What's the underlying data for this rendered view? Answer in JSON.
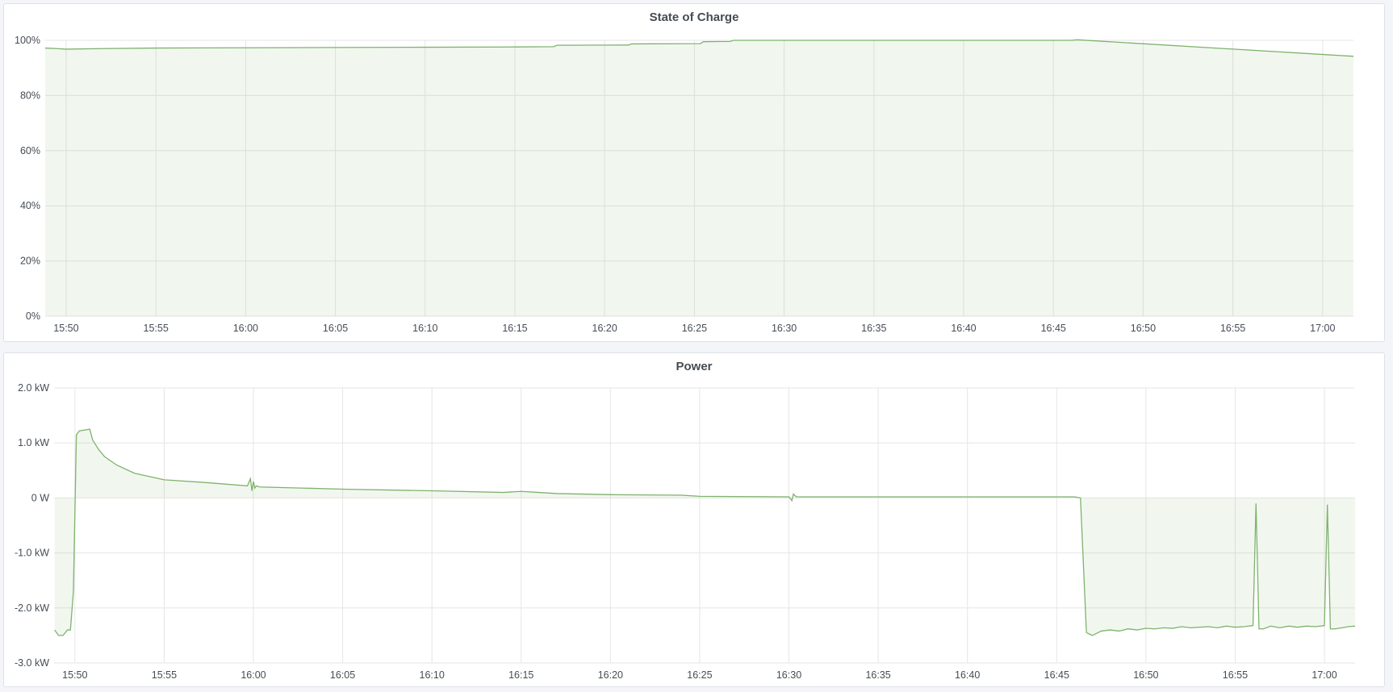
{
  "colors": {
    "line": "#7eb26d",
    "fill": "rgba(126,178,109,0.11)",
    "grid": "#e6e6e6"
  },
  "chart_data": [
    {
      "type": "area",
      "title": "State of Charge",
      "xlim": [
        "15:48:50",
        "17:01:43"
      ],
      "ylim": [
        0,
        100
      ],
      "grid": true,
      "x_ticks": [
        "15:50",
        "15:55",
        "16:00",
        "16:05",
        "16:10",
        "16:15",
        "16:20",
        "16:25",
        "16:30",
        "16:35",
        "16:40",
        "16:45",
        "16:50",
        "16:55",
        "17:00"
      ],
      "y_ticks": [
        {
          "v": 0,
          "label": "0%"
        },
        {
          "v": 20,
          "label": "20%"
        },
        {
          "v": 40,
          "label": "40%"
        },
        {
          "v": 60,
          "label": "60%"
        },
        {
          "v": 80,
          "label": "80%"
        },
        {
          "v": 100,
          "label": "100%"
        }
      ],
      "series": [
        {
          "x": [
            "15:48:50",
            "15:49:30",
            "15:50:00",
            "15:52:00",
            "15:55:00",
            "16:00:00",
            "16:05:00",
            "16:10:00",
            "16:15:00",
            "16:17:10",
            "16:17:20",
            "16:21:20",
            "16:21:30",
            "16:25:20",
            "16:25:30",
            "16:27:00",
            "16:27:10",
            "16:46:00",
            "16:46:20",
            "17:01:43"
          ],
          "y": [
            97.2,
            97.0,
            96.8,
            97.0,
            97.2,
            97.3,
            97.4,
            97.5,
            97.6,
            97.7,
            98.2,
            98.3,
            98.7,
            98.8,
            99.5,
            99.6,
            100,
            100,
            100.2,
            94.2
          ]
        }
      ]
    },
    {
      "type": "area",
      "title": "Power",
      "xlim": [
        "15:48:50",
        "17:01:43"
      ],
      "ylim": [
        -3.0,
        2.0
      ],
      "grid": true,
      "x_ticks": [
        "15:50",
        "15:55",
        "16:00",
        "16:05",
        "16:10",
        "16:15",
        "16:20",
        "16:25",
        "16:30",
        "16:35",
        "16:40",
        "16:45",
        "16:50",
        "16:55",
        "17:00"
      ],
      "y_ticks": [
        {
          "v": -3,
          "label": "-3.0 kW"
        },
        {
          "v": -2,
          "label": "-2.0 kW"
        },
        {
          "v": -1,
          "label": "-1.0 kW"
        },
        {
          "v": 0,
          "label": "0 W"
        },
        {
          "v": 1,
          "label": "1.0 kW"
        },
        {
          "v": 2,
          "label": "2.0 kW"
        }
      ],
      "series": [
        {
          "x": [
            "15:48:52",
            "15:49:05",
            "15:49:20",
            "15:49:35",
            "15:49:45",
            "15:49:55",
            "15:50:05",
            "15:50:15",
            "15:50:50",
            "15:51:00",
            "15:51:20",
            "15:51:40",
            "15:52:20",
            "15:53:20",
            "15:55:00",
            "15:57:20",
            "15:59:40",
            "15:59:50",
            "15:59:55",
            "16:00:00",
            "16:00:05",
            "16:00:10",
            "16:00:20",
            "16:05:00",
            "16:10:00",
            "16:14:00",
            "16:15:00",
            "16:16:00",
            "16:17:00",
            "16:20:00",
            "16:24:00",
            "16:25:00",
            "16:30:00",
            "16:30:10",
            "16:30:15",
            "16:30:25",
            "16:35:00",
            "16:40:00",
            "16:46:00",
            "16:46:20",
            "16:46:40",
            "16:47:00",
            "16:47:30",
            "16:48:00",
            "16:48:30",
            "16:49:00",
            "16:49:30",
            "16:50:00",
            "16:50:30",
            "16:51:00",
            "16:51:30",
            "16:52:00",
            "16:52:30",
            "16:53:00",
            "16:53:30",
            "16:54:00",
            "16:54:30",
            "16:55:00",
            "16:55:30",
            "16:56:00",
            "16:56:10",
            "16:56:20",
            "16:56:35",
            "16:57:00",
            "16:57:30",
            "16:58:00",
            "16:58:30",
            "16:59:00",
            "16:59:30",
            "17:00:00",
            "17:00:10",
            "17:00:20",
            "17:00:35",
            "17:01:00",
            "17:01:20",
            "17:01:43"
          ],
          "y": [
            -2.4,
            -2.5,
            -2.5,
            -2.4,
            -2.4,
            -1.7,
            1.15,
            1.22,
            1.25,
            1.05,
            0.88,
            0.75,
            0.6,
            0.45,
            0.33,
            0.28,
            0.22,
            0.35,
            0.13,
            0.3,
            0.18,
            0.22,
            0.2,
            0.16,
            0.13,
            0.1,
            0.12,
            0.1,
            0.08,
            0.06,
            0.05,
            0.03,
            0.02,
            -0.05,
            0.07,
            0.02,
            0.02,
            0.02,
            0.02,
            0.0,
            -2.45,
            -2.5,
            -2.42,
            -2.4,
            -2.42,
            -2.38,
            -2.4,
            -2.37,
            -2.38,
            -2.36,
            -2.37,
            -2.34,
            -2.36,
            -2.35,
            -2.34,
            -2.36,
            -2.33,
            -2.35,
            -2.34,
            -2.32,
            -0.1,
            -2.38,
            -2.38,
            -2.33,
            -2.36,
            -2.33,
            -2.35,
            -2.33,
            -2.34,
            -2.32,
            -0.12,
            -2.38,
            -2.38,
            -2.36,
            -2.34,
            -2.33
          ]
        }
      ]
    }
  ]
}
